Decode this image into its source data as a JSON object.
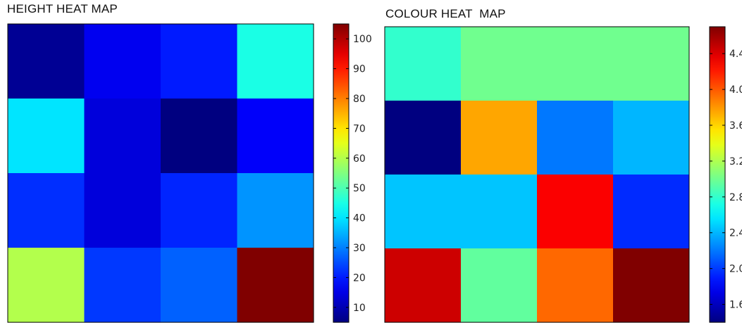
{
  "chart_data": [
    {
      "type": "heatmap",
      "title": "HEIGHT HEAT MAP",
      "rows": 4,
      "cols": 4,
      "values": [
        [
          7,
          16,
          20,
          45
        ],
        [
          40,
          14,
          5,
          17
        ],
        [
          22,
          14,
          21,
          32
        ],
        [
          60,
          23,
          27,
          105
        ]
      ],
      "colormap": "jet",
      "vmin": 5,
      "vmax": 105,
      "colorbar_ticks": [
        "10",
        "20",
        "30",
        "40",
        "50",
        "60",
        "70",
        "80",
        "90",
        "100"
      ],
      "colorbar_tick_values": [
        10,
        20,
        30,
        40,
        50,
        60,
        70,
        80,
        90,
        100
      ]
    },
    {
      "type": "heatmap",
      "title": "COLOUR HEAT  MAP",
      "rows": 4,
      "cols": 4,
      "values": [
        [
          2.8,
          3.0,
          3.0,
          3.0
        ],
        [
          1.4,
          3.75,
          2.2,
          2.4
        ],
        [
          2.45,
          2.45,
          4.3,
          1.95
        ],
        [
          4.45,
          2.95,
          3.95,
          4.7
        ]
      ],
      "colormap": "jet",
      "vmin": 1.4,
      "vmax": 4.7,
      "colorbar_ticks": [
        "1.6",
        "2.0",
        "2.4",
        "2.8",
        "3.2",
        "3.6",
        "4.0",
        "4.4"
      ],
      "colorbar_tick_values": [
        1.6,
        2.0,
        2.4,
        2.8,
        3.2,
        3.6,
        4.0,
        4.4
      ]
    }
  ]
}
